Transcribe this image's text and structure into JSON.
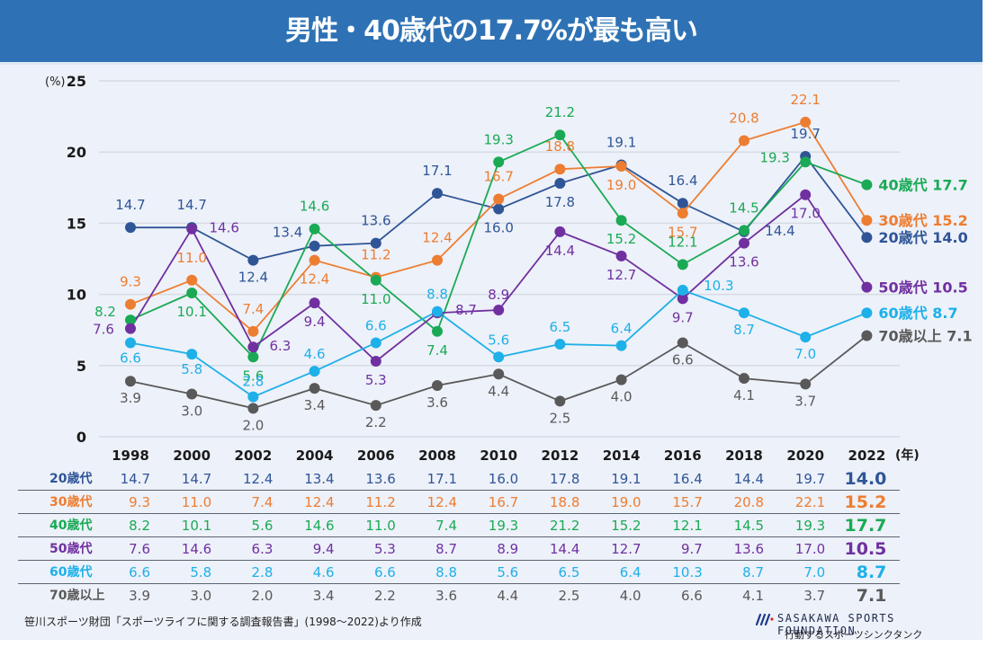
{
  "header": {
    "title": "男性・40歳代の17.7%が最も高い"
  },
  "chart_data": {
    "type": "line",
    "title": "男性・40歳代の17.7%が最も高い",
    "xlabel": "(年)",
    "ylabel": "(%)",
    "ylim": [
      0,
      25
    ],
    "yticks": [
      0,
      5,
      10,
      15,
      20,
      25
    ],
    "grid": true,
    "legend": "right-end labels",
    "x": [
      "1998",
      "2000",
      "2002",
      "2004",
      "2006",
      "2008",
      "2010",
      "2012",
      "2014",
      "2016",
      "2018",
      "2020",
      "2022"
    ],
    "series": [
      {
        "name": "20歳代",
        "color": "#2f5597",
        "values": [
          14.7,
          14.7,
          12.4,
          13.4,
          13.6,
          17.1,
          16.0,
          17.8,
          19.1,
          16.4,
          14.4,
          19.7,
          14.0
        ]
      },
      {
        "name": "30歳代",
        "color": "#ed7d31",
        "values": [
          9.3,
          11.0,
          7.4,
          12.4,
          11.2,
          12.4,
          16.7,
          18.8,
          19.0,
          15.7,
          20.8,
          22.1,
          15.2
        ]
      },
      {
        "name": "40歳代",
        "color": "#1aaa55",
        "values": [
          8.2,
          10.1,
          5.6,
          14.6,
          11.0,
          7.4,
          19.3,
          21.2,
          15.2,
          12.1,
          14.5,
          19.3,
          17.7
        ]
      },
      {
        "name": "50歳代",
        "color": "#7030a0",
        "values": [
          7.6,
          14.6,
          6.3,
          9.4,
          5.3,
          8.7,
          8.9,
          14.4,
          12.7,
          9.7,
          13.6,
          17.0,
          10.5
        ]
      },
      {
        "name": "60歳代",
        "color": "#1eb0e8",
        "values": [
          6.6,
          5.8,
          2.8,
          4.6,
          6.6,
          8.8,
          5.6,
          6.5,
          6.4,
          10.3,
          8.7,
          7.0,
          8.7
        ]
      },
      {
        "name": "70歳以上",
        "color": "#595959",
        "values": [
          3.9,
          3.0,
          2.0,
          3.4,
          2.2,
          3.6,
          4.4,
          2.5,
          4.0,
          6.6,
          4.1,
          3.7,
          7.1
        ]
      }
    ]
  },
  "table": {
    "unit_label": "(年)",
    "years": [
      "1998",
      "2000",
      "2002",
      "2004",
      "2006",
      "2008",
      "2010",
      "2012",
      "2014",
      "2016",
      "2018",
      "2020",
      "2022"
    ],
    "rows": [
      {
        "name": "20歳代",
        "values": [
          "14.7",
          "14.7",
          "12.4",
          "13.4",
          "13.6",
          "17.1",
          "16.0",
          "17.8",
          "19.1",
          "16.4",
          "14.4",
          "19.7",
          "14.0"
        ]
      },
      {
        "name": "30歳代",
        "values": [
          "9.3",
          "11.0",
          "7.4",
          "12.4",
          "11.2",
          "12.4",
          "16.7",
          "18.8",
          "19.0",
          "15.7",
          "20.8",
          "22.1",
          "15.2"
        ]
      },
      {
        "name": "40歳代",
        "values": [
          "8.2",
          "10.1",
          "5.6",
          "14.6",
          "11.0",
          "7.4",
          "19.3",
          "21.2",
          "15.2",
          "12.1",
          "14.5",
          "19.3",
          "17.7"
        ]
      },
      {
        "name": "50歳代",
        "values": [
          "7.6",
          "14.6",
          "6.3",
          "9.4",
          "5.3",
          "8.7",
          "8.9",
          "14.4",
          "12.7",
          "9.7",
          "13.6",
          "17.0",
          "10.5"
        ]
      },
      {
        "name": "60歳代",
        "values": [
          "6.6",
          "5.8",
          "2.8",
          "4.6",
          "6.6",
          "8.8",
          "5.6",
          "6.5",
          "6.4",
          "10.3",
          "8.7",
          "7.0",
          "8.7"
        ]
      },
      {
        "name": "70歳以上",
        "values": [
          "3.9",
          "3.0",
          "2.0",
          "3.4",
          "2.2",
          "3.6",
          "4.4",
          "2.5",
          "4.0",
          "6.6",
          "4.1",
          "3.7",
          "7.1"
        ]
      }
    ]
  },
  "footer": {
    "source": "笹川スポーツ財団「スポーツライフに関する調査報告書」(1998～2022)より作成",
    "logo_text": "SASAKAWA SPORTS FOUNDATION",
    "logo_sub": "行動するスポーツシンクタンク"
  }
}
